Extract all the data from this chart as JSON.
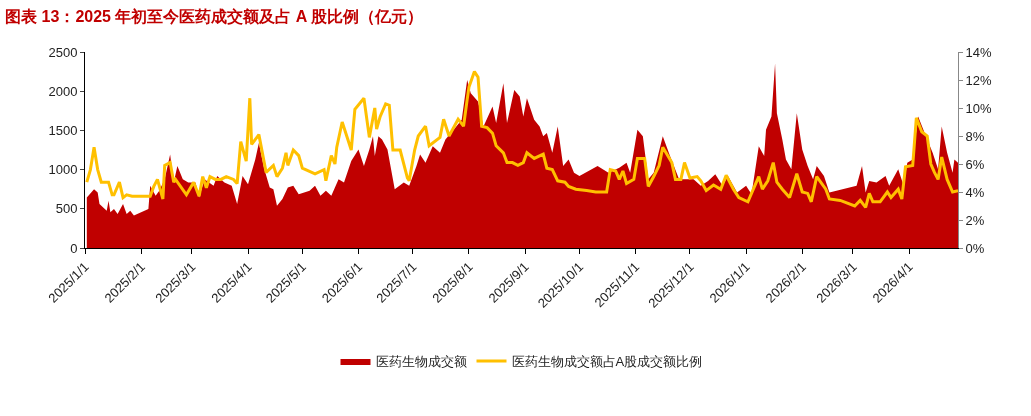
{
  "chart_data": {
    "type": "area",
    "title": "图表 13：2025 年初至今医药成交额及占 A 股比例（亿元）",
    "legend": "bottom",
    "grid": false,
    "xlim": [
      "2025-01-01",
      "2026-04-28"
    ],
    "xticks": [
      {
        "value": "2025-01-01",
        "label": "2025/1/1"
      },
      {
        "value": "2025-02-01",
        "label": "2025/2/1"
      },
      {
        "value": "2025-03-01",
        "label": "2025/3/1"
      },
      {
        "value": "2025-04-01",
        "label": "2025/4/1"
      },
      {
        "value": "2025-05-01",
        "label": "2025/5/1"
      },
      {
        "value": "2025-06-01",
        "label": "2025/6/1"
      },
      {
        "value": "2025-07-01",
        "label": "2025/7/1"
      },
      {
        "value": "2025-08-01",
        "label": "2025/8/1"
      },
      {
        "value": "2025-09-01",
        "label": "2025/9/1"
      },
      {
        "value": "2025-10-01",
        "label": "2025/10/1"
      },
      {
        "value": "2025-11-01",
        "label": "2025/11/1"
      },
      {
        "value": "2025-12-01",
        "label": "2025/12/1"
      },
      {
        "value": "2026-01-01",
        "label": "2026/1/1"
      },
      {
        "value": "2026-02-01",
        "label": "2026/2/1"
      },
      {
        "value": "2026-03-01",
        "label": "2026/3/1"
      },
      {
        "value": "2026-04-01",
        "label": "2026/4/1"
      }
    ],
    "ylim": [
      0,
      2500
    ],
    "yticks": [
      0,
      500,
      1000,
      1500,
      2000,
      2500
    ],
    "y2lim": [
      0,
      14
    ],
    "y2ticks": [
      {
        "value": 0,
        "label": "0%"
      },
      {
        "value": 2,
        "label": "2%"
      },
      {
        "value": 4,
        "label": "4%"
      },
      {
        "value": 6,
        "label": "6%"
      },
      {
        "value": 8,
        "label": "8%"
      },
      {
        "value": 10,
        "label": "10%"
      },
      {
        "value": 12,
        "label": "12%"
      },
      {
        "value": 14,
        "label": "14%"
      }
    ],
    "series": [
      {
        "name": "医药生物成交额",
        "color": "#c00000",
        "x": [
          "2025-01-02",
          "2025-01-06",
          "2025-01-08",
          "2025-01-09",
          "2025-01-13",
          "2025-01-14",
          "2025-01-15",
          "2025-01-17",
          "2025-01-19",
          "2025-01-22",
          "2025-01-24",
          "2025-01-26",
          "2025-01-28",
          "2025-02-05",
          "2025-02-06",
          "2025-02-09",
          "2025-02-11",
          "2025-02-14",
          "2025-02-17",
          "2025-02-19",
          "2025-02-21",
          "2025-02-24",
          "2025-02-27",
          "2025-03-03",
          "2025-03-05",
          "2025-03-08",
          "2025-03-13",
          "2025-03-15",
          "2025-03-19",
          "2025-03-23",
          "2025-03-26",
          "2025-03-29",
          "2025-04-01",
          "2025-04-05",
          "2025-04-07",
          "2025-04-10",
          "2025-04-13",
          "2025-04-15",
          "2025-04-17",
          "2025-04-20",
          "2025-04-23",
          "2025-04-26",
          "2025-04-29",
          "2025-05-05",
          "2025-05-08",
          "2025-05-11",
          "2025-05-14",
          "2025-05-17",
          "2025-05-21",
          "2025-05-24",
          "2025-05-28",
          "2025-06-01",
          "2025-06-04",
          "2025-06-07",
          "2025-06-09",
          "2025-06-10",
          "2025-06-12",
          "2025-06-14",
          "2025-06-17",
          "2025-06-21",
          "2025-06-26",
          "2025-06-29",
          "2025-07-03",
          "2025-07-05",
          "2025-07-08",
          "2025-07-12",
          "2025-07-16",
          "2025-07-19",
          "2025-07-25",
          "2025-07-28",
          "2025-07-31",
          "2025-08-02",
          "2025-08-06",
          "2025-08-09",
          "2025-08-14",
          "2025-08-16",
          "2025-08-20",
          "2025-08-22",
          "2025-08-26",
          "2025-08-29",
          "2025-08-31",
          "2025-09-02",
          "2025-09-06",
          "2025-09-09",
          "2025-09-11",
          "2025-09-13",
          "2025-09-16",
          "2025-09-19",
          "2025-09-22",
          "2025-09-25",
          "2025-09-28",
          "2025-10-01",
          "2025-10-11",
          "2025-10-17",
          "2025-10-23",
          "2025-10-27",
          "2025-10-29",
          "2025-11-02",
          "2025-11-05",
          "2025-11-08",
          "2025-11-11",
          "2025-11-16",
          "2025-11-20",
          "2025-11-25",
          "2025-12-01",
          "2025-12-03",
          "2025-12-07",
          "2025-12-11",
          "2025-12-15",
          "2025-12-19",
          "2025-12-22",
          "2025-12-27",
          "2026-01-01",
          "2026-01-04",
          "2026-01-08",
          "2026-01-11",
          "2026-01-12",
          "2026-01-15",
          "2026-01-17",
          "2026-01-18",
          "2026-01-21",
          "2026-01-23",
          "2026-01-26",
          "2026-01-29",
          "2026-02-01",
          "2026-02-04",
          "2026-02-07",
          "2026-02-09",
          "2026-02-13",
          "2026-02-16",
          "2026-03-03",
          "2026-03-06",
          "2026-03-08",
          "2026-03-10",
          "2026-03-14",
          "2026-03-19",
          "2026-03-21",
          "2026-03-26",
          "2026-03-29",
          "2026-03-31",
          "2026-04-03",
          "2026-04-06",
          "2026-04-11",
          "2026-04-14",
          "2026-04-17",
          "2026-04-19",
          "2026-04-22",
          "2026-04-25",
          "2026-04-26",
          "2026-04-28"
        ],
        "values": [
          645,
          750,
          708,
          560,
          476,
          603,
          455,
          497,
          434,
          560,
          434,
          476,
          413,
          497,
          793,
          666,
          729,
          877,
          1193,
          835,
          1046,
          877,
          835,
          835,
          645,
          877,
          793,
          919,
          835,
          793,
          560,
          919,
          814,
          1130,
          1340,
          1003,
          771,
          750,
          540,
          624,
          771,
          793,
          687,
          729,
          793,
          666,
          729,
          666,
          877,
          835,
          1109,
          1256,
          1046,
          1256,
          1425,
          1172,
          1425,
          1383,
          1256,
          750,
          835,
          793,
          1046,
          1193,
          1088,
          1298,
          1214,
          1383,
          1551,
          1636,
          2142,
          1973,
          1868,
          1551,
          1804,
          1594,
          2100,
          1594,
          2015,
          1931,
          1678,
          1910,
          1636,
          1551,
          1425,
          1467,
          1214,
          1551,
          1046,
          1130,
          961,
          919,
          1046,
          961,
          1025,
          1088,
          961,
          1509,
          1425,
          877,
          961,
          1425,
          1172,
          877,
          877,
          877,
          793,
          856,
          940,
          793,
          919,
          708,
          793,
          687,
          1298,
          1172,
          1509,
          1678,
          2353,
          1720,
          1383,
          1130,
          1003,
          1720,
          1256,
          1046,
          877,
          1046,
          919,
          708,
          793,
          1046,
          708,
          856,
          835,
          919,
          793,
          1003,
          793,
          1088,
          1130,
          1678,
          1383,
          1214,
          1003,
          1551,
          1214,
          961,
          1130,
          1088
        ]
      },
      {
        "name": "医药生物成交额占A股成交额比例",
        "type": "line",
        "axis": "y2",
        "color": "#ffc000",
        "x": [
          "2025-01-02",
          "2025-01-04",
          "2025-01-06",
          "2025-01-08",
          "2025-01-10",
          "2025-01-14",
          "2025-01-16",
          "2025-01-17",
          "2025-01-20",
          "2025-01-22",
          "2025-01-24",
          "2025-01-27",
          "2025-02-06",
          "2025-02-08",
          "2025-02-10",
          "2025-02-13",
          "2025-02-14",
          "2025-02-17",
          "2025-02-19",
          "2025-02-20",
          "2025-02-26",
          "2025-03-02",
          "2025-03-05",
          "2025-03-07",
          "2025-03-09",
          "2025-03-11",
          "2025-03-14",
          "2025-03-17",
          "2025-03-20",
          "2025-03-24",
          "2025-03-26",
          "2025-03-28",
          "2025-03-31",
          "2025-04-02",
          "2025-04-03",
          "2025-04-07",
          "2025-04-11",
          "2025-04-15",
          "2025-04-17",
          "2025-04-20",
          "2025-04-22",
          "2025-04-23",
          "2025-04-26",
          "2025-04-29",
          "2025-05-01",
          "2025-05-08",
          "2025-05-13",
          "2025-05-14",
          "2025-05-17",
          "2025-05-19",
          "2025-05-20",
          "2025-05-23",
          "2025-05-28",
          "2025-05-30",
          "2025-06-04",
          "2025-06-07",
          "2025-06-10",
          "2025-06-11",
          "2025-06-13",
          "2025-06-16",
          "2025-06-18",
          "2025-06-20",
          "2025-06-24",
          "2025-06-28",
          "2025-06-29",
          "2025-07-02",
          "2025-07-04",
          "2025-07-08",
          "2025-07-10",
          "2025-07-16",
          "2025-07-18",
          "2025-07-21",
          "2025-07-26",
          "2025-07-29",
          "2025-07-31",
          "2025-08-01",
          "2025-08-04",
          "2025-08-06",
          "2025-08-08",
          "2025-08-11",
          "2025-08-14",
          "2025-08-16",
          "2025-08-20",
          "2025-08-22",
          "2025-08-25",
          "2025-08-28",
          "2025-08-31",
          "2025-09-02",
          "2025-09-06",
          "2025-09-11",
          "2025-09-13",
          "2025-09-16",
          "2025-09-19",
          "2025-09-23",
          "2025-09-25",
          "2025-09-29",
          "2025-10-05",
          "2025-10-10",
          "2025-10-16",
          "2025-10-18",
          "2025-10-21",
          "2025-10-23",
          "2025-10-25",
          "2025-10-27",
          "2025-10-31",
          "2025-11-02",
          "2025-11-06",
          "2025-11-08",
          "2025-11-11",
          "2025-11-14",
          "2025-11-16",
          "2025-11-21",
          "2025-11-23",
          "2025-11-26",
          "2025-11-28",
          "2025-12-01",
          "2025-12-05",
          "2025-12-07",
          "2025-12-10",
          "2025-12-14",
          "2025-12-18",
          "2025-12-21",
          "2025-12-25",
          "2025-12-28",
          "2026-01-02",
          "2026-01-05",
          "2026-01-08",
          "2026-01-10",
          "2026-01-13",
          "2026-01-16",
          "2026-01-18",
          "2026-01-21",
          "2026-01-25",
          "2026-01-29",
          "2026-02-01",
          "2026-02-04",
          "2026-02-06",
          "2026-02-09",
          "2026-02-14",
          "2026-02-16",
          "2026-02-22",
          "2026-03-02",
          "2026-03-05",
          "2026-03-08",
          "2026-03-10",
          "2026-03-12",
          "2026-03-16",
          "2026-03-20",
          "2026-03-22",
          "2026-03-26",
          "2026-03-28",
          "2026-03-30",
          "2026-04-03",
          "2026-04-05",
          "2026-04-08",
          "2026-04-11",
          "2026-04-13",
          "2026-04-15",
          "2026-04-17",
          "2026-04-19",
          "2026-04-22",
          "2026-04-25",
          "2026-04-28"
        ],
        "values": [
          4.7,
          5.6,
          7.2,
          5.6,
          4.7,
          4.7,
          3.8,
          3.8,
          4.7,
          3.6,
          3.8,
          3.7,
          3.7,
          4.4,
          4.9,
          3.5,
          5.9,
          6.1,
          4.7,
          4.9,
          3.8,
          4.7,
          3.7,
          5.1,
          4.3,
          5.1,
          4.9,
          4.9,
          5.1,
          4.9,
          4.6,
          7.6,
          6.2,
          10.7,
          7.4,
          8.1,
          5.4,
          5.9,
          5.1,
          5.7,
          6.8,
          5.9,
          7.0,
          6.6,
          5.7,
          5.3,
          5.6,
          4.8,
          6.6,
          6.0,
          7.2,
          9.0,
          7.0,
          9.9,
          10.7,
          7.9,
          10.0,
          8.5,
          9.4,
          10.3,
          10.2,
          7.0,
          7.0,
          5.0,
          4.8,
          7.0,
          8.0,
          8.7,
          7.3,
          7.9,
          9.2,
          8.0,
          9.2,
          8.7,
          10.6,
          11.5,
          12.6,
          12.2,
          8.7,
          8.6,
          8.2,
          7.3,
          6.8,
          6.1,
          6.1,
          5.9,
          6.1,
          6.8,
          6.4,
          6.7,
          5.7,
          5.6,
          4.8,
          4.7,
          4.4,
          4.2,
          4.1,
          4.0,
          4.0,
          5.6,
          5.5,
          4.9,
          5.5,
          4.6,
          4.9,
          6.4,
          6.4,
          4.4,
          5.1,
          5.9,
          7.2,
          6.1,
          4.9,
          4.9,
          6.1,
          5.0,
          5.1,
          4.8,
          4.1,
          4.5,
          4.2,
          5.2,
          4.2,
          3.6,
          3.3,
          4.2,
          5.1,
          4.2,
          4.8,
          6.1,
          4.7,
          4.2,
          3.6,
          5.3,
          4.0,
          3.9,
          3.3,
          5.1,
          4.2,
          3.5,
          3.4,
          3.0,
          3.4,
          2.9,
          3.9,
          3.3,
          3.3,
          4.0,
          3.6,
          4.2,
          3.5,
          5.8,
          5.9,
          9.3,
          8.3,
          8.0,
          6.0,
          5.4,
          4.9,
          6.5,
          4.9,
          4.0,
          4.1
        ]
      }
    ]
  }
}
